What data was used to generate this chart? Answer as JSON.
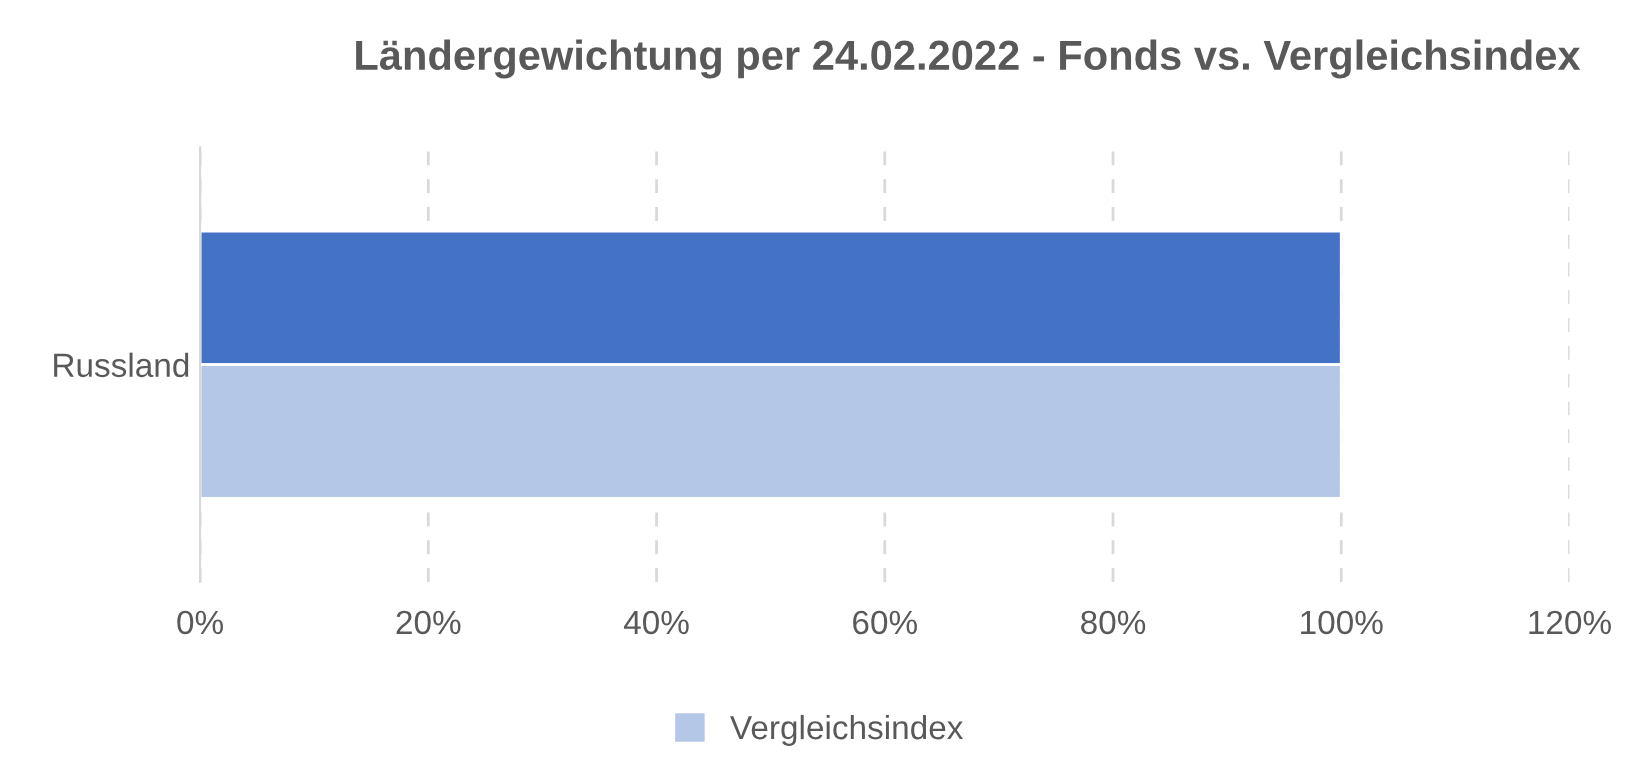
{
  "chart_data": {
    "type": "bar",
    "orientation": "horizontal",
    "title": "Ländergewichtung per 24.02.2022 - Fonds vs. Vergleichsindex",
    "categories": [
      "Russland"
    ],
    "series": [
      {
        "color": "#4472c4",
        "values": [
          100
        ]
      },
      {
        "name": "Vergleichsindex",
        "color": "#b4c7e7",
        "values": [
          100
        ]
      }
    ],
    "xlim": [
      0,
      120
    ],
    "xticks": [
      {
        "value": 0,
        "label": "0%"
      },
      {
        "value": 20,
        "label": "20%"
      },
      {
        "value": 40,
        "label": "40%"
      },
      {
        "value": 60,
        "label": "60%"
      },
      {
        "value": 80,
        "label": "80%"
      },
      {
        "value": 100,
        "label": "100%"
      },
      {
        "value": 120,
        "label": "120%"
      }
    ],
    "grid": "x",
    "legend": "bottom"
  }
}
